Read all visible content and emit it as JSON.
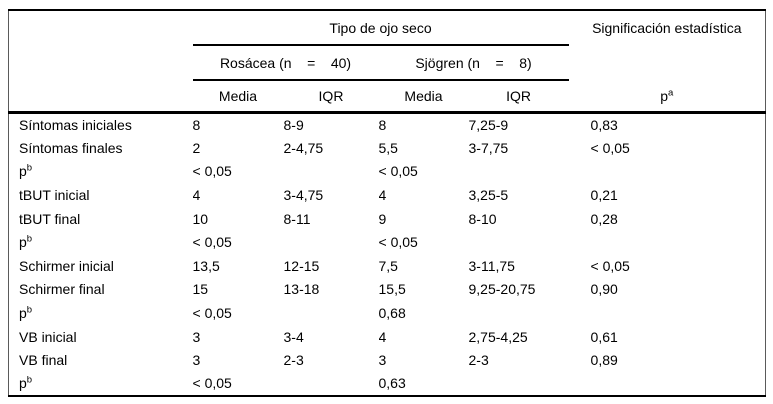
{
  "table": {
    "header": {
      "group_title": "Tipo de ojo seco",
      "significance_title": "Significación estadística",
      "rosacea_label": "Rosácea (n    =    40)",
      "sjogren_label": "Sjögren (n    =    8)",
      "columns": [
        "Media",
        "IQR",
        "Media",
        "IQR"
      ],
      "p_header": {
        "base": "p",
        "sup": "a"
      }
    },
    "rows": [
      {
        "label": "Síntomas iniciales",
        "cells": [
          "8",
          "8-9",
          "8",
          "7,25-9",
          "0,83"
        ]
      },
      {
        "label": "Síntomas finales",
        "cells": [
          "2",
          "2-4,75",
          "5,5",
          "3-7,75",
          "< 0,05"
        ]
      },
      {
        "label": "p",
        "label_sup": "b",
        "cells": [
          "< 0,05",
          "",
          "< 0,05",
          "",
          ""
        ]
      },
      {
        "label": "tBUT inicial",
        "cells": [
          "4",
          "3-4,75",
          "4",
          "3,25-5",
          "0,21"
        ]
      },
      {
        "label": "tBUT final",
        "cells": [
          "10",
          "8-11",
          "9",
          "8-10",
          "0,28"
        ]
      },
      {
        "label": "p",
        "label_sup": "b",
        "cells": [
          "< 0,05",
          "",
          "< 0,05",
          "",
          ""
        ]
      },
      {
        "label": "Schirmer inicial",
        "cells": [
          "13,5",
          "12-15",
          "7,5",
          "3-11,75",
          "< 0,05"
        ]
      },
      {
        "label": "Schirmer final",
        "cells": [
          "15",
          "13-18",
          "15,5",
          "9,25-20,75",
          "0,90"
        ]
      },
      {
        "label": "p",
        "label_sup": "b",
        "cells": [
          "< 0,05",
          "",
          "0,68",
          "",
          ""
        ]
      },
      {
        "label": "VB inicial",
        "cells": [
          "3",
          "3-4",
          "4",
          "2,75-4,25",
          "0,61"
        ]
      },
      {
        "label": "VB final",
        "cells": [
          "3",
          "2-3",
          "3",
          "2-3",
          "0,89"
        ]
      },
      {
        "label": "p",
        "label_sup": "b",
        "cells": [
          "< 0,05",
          "",
          "0,63",
          "",
          ""
        ]
      }
    ],
    "cell_names": [
      "rosacea-media",
      "rosacea-iqr",
      "sjogren-media",
      "sjogren-iqr",
      "p-value"
    ]
  }
}
